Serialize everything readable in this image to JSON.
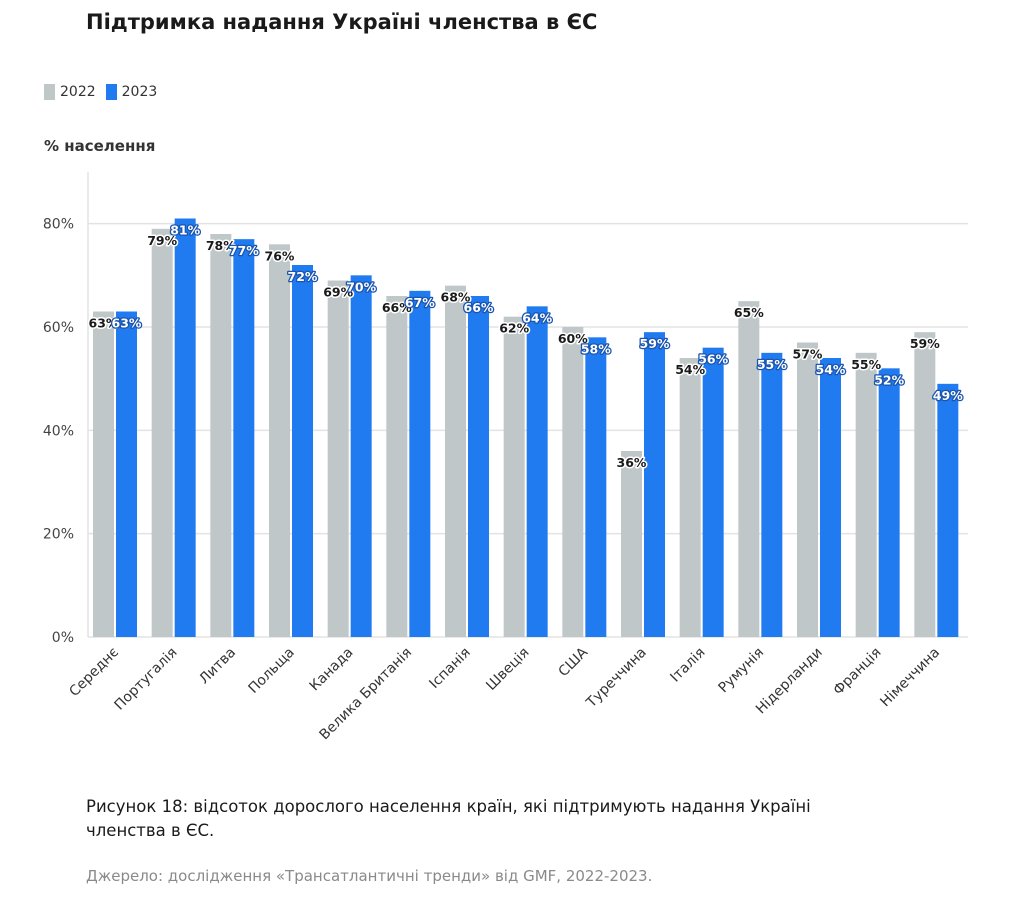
{
  "colors": {
    "series_2022": "#bfc7c9",
    "series_2023": "#1f7bef",
    "grid": "#e3e3e3"
  },
  "chart_data": {
    "type": "bar",
    "title": "Підтримка надання Україні членства в ЄС",
    "ylabel": "% населення",
    "xlabel": "",
    "ylim": [
      0,
      90
    ],
    "yticks": [
      0,
      20,
      40,
      60,
      80
    ],
    "ytick_labels": [
      "0%",
      "20%",
      "40%",
      "60%",
      "80%"
    ],
    "legend_position": "top-left",
    "grid": true,
    "categories": [
      "Середнє",
      "Португалія",
      "Литва",
      "Польща",
      "Канада",
      "Велика Британія",
      "Іспанія",
      "Швеція",
      "США",
      "Туреччина",
      "Італія",
      "Румунія",
      "Нідерланди",
      "Франція",
      "Німеччина"
    ],
    "series": [
      {
        "name": "2022",
        "values": [
          63,
          79,
          78,
          76,
          69,
          66,
          68,
          62,
          60,
          36,
          54,
          65,
          57,
          55,
          59
        ],
        "labels": [
          "63%",
          "79%",
          "78%",
          "76%",
          "69%",
          "66%",
          "68%",
          "62%",
          "60%",
          "36%",
          "54%",
          "65%",
          "57%",
          "55%",
          "59%"
        ]
      },
      {
        "name": "2023",
        "values": [
          63,
          81,
          77,
          72,
          70,
          67,
          66,
          64,
          58,
          59,
          56,
          55,
          54,
          52,
          49
        ],
        "labels": [
          "63%",
          "81%",
          "77%",
          "72%",
          "70%",
          "67%",
          "66%",
          "64%",
          "58%",
          "59%",
          "56%",
          "55%",
          "54%",
          "52%",
          "49%"
        ]
      }
    ]
  },
  "caption": "Рисунок 18: відсоток дорослого населення країн, які підтримують надання Україні членства в ЄС.",
  "source": "Джерело: дослідження «Трансатлантичні тренди» від GMF, 2022-2023."
}
